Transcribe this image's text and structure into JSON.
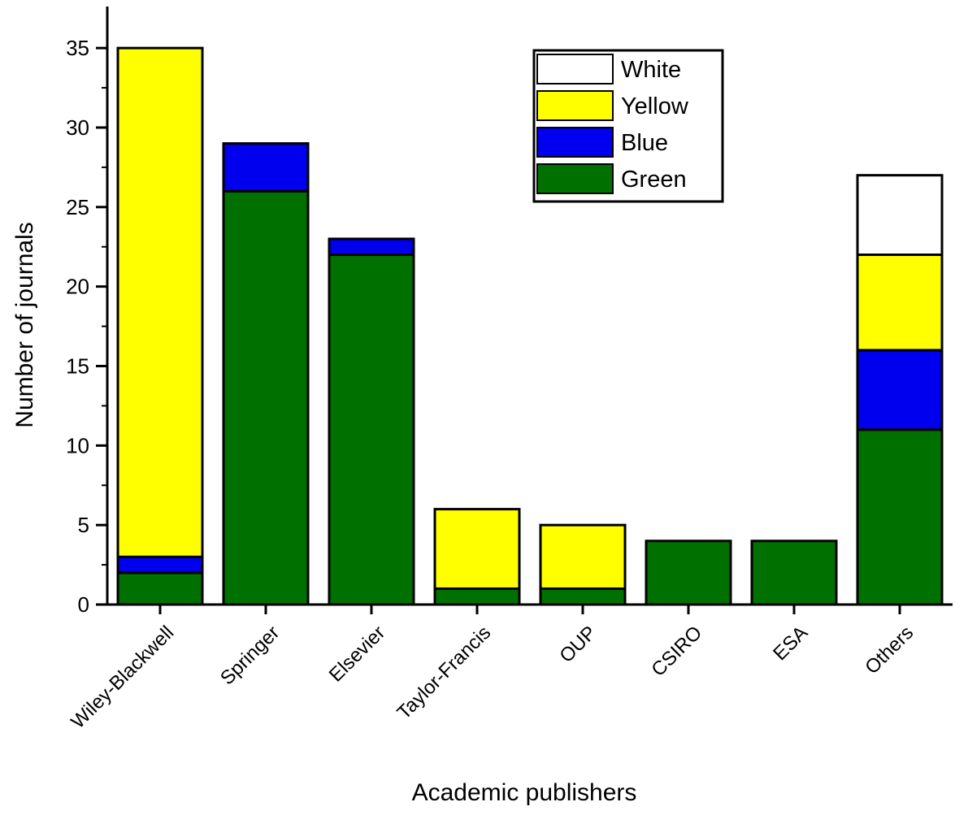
{
  "chart_data": {
    "type": "bar",
    "stacked": true,
    "xlabel": "Academic publishers",
    "ylabel": "Number of journals",
    "ylim": [
      0,
      37
    ],
    "yticks": [
      0,
      5,
      10,
      15,
      20,
      25,
      30,
      35
    ],
    "categories": [
      "Wiley-Blackwell",
      "Springer",
      "Elsevier",
      "Taylor-Francis",
      "OUP",
      "CSIRO",
      "ESA",
      "Others"
    ],
    "series": [
      {
        "name": "Green",
        "color": "#007000",
        "values": [
          2,
          26,
          22,
          1,
          1,
          4,
          4,
          11
        ]
      },
      {
        "name": "Blue",
        "color": "#0000ee",
        "values": [
          1,
          3,
          1,
          0,
          0,
          0,
          0,
          5
        ]
      },
      {
        "name": "Yellow",
        "color": "#ffff00",
        "values": [
          32,
          0,
          0,
          5,
          4,
          0,
          0,
          6
        ]
      },
      {
        "name": "White",
        "color": "#ffffff",
        "values": [
          0,
          0,
          0,
          0,
          0,
          0,
          0,
          5
        ]
      }
    ],
    "legend": {
      "placement": "top-right",
      "order": [
        "White",
        "Yellow",
        "Blue",
        "Green"
      ]
    },
    "grid": false
  }
}
